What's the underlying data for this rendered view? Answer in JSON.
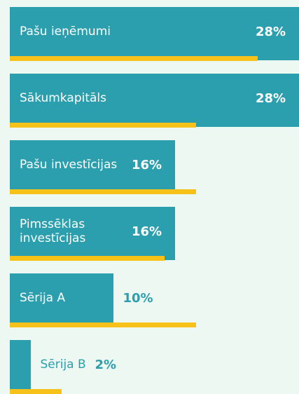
{
  "chart_data": {
    "type": "bar",
    "orientation": "horizontal",
    "categories": [
      "Pašu ieņēmumi",
      "Sākumkapitāls",
      "Pašu investīcijas",
      "Pimssēklas investīcijas",
      "Sērija A",
      "Sērija B"
    ],
    "series": [
      {
        "color": "#2b9fae",
        "values": [
          28,
          28,
          16,
          16,
          10,
          2
        ],
        "value_labels": [
          "28%",
          "28%",
          "16%",
          "16%",
          "10%",
          "2%"
        ]
      },
      {
        "color": "#f6c21a",
        "values": [
          24,
          18,
          18,
          15,
          18,
          5
        ]
      }
    ],
    "xlim": [
      0,
      28
    ]
  }
}
